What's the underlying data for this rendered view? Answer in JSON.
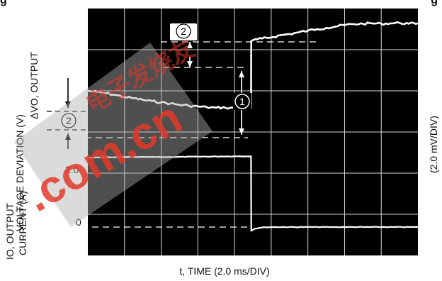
{
  "title_cut": {
    "left": "g",
    "right": "g"
  },
  "labels": {
    "y_upper_line1": "VOLTAGE DEVIATION (V)",
    "y_upper_line2": "ΔVO, OUTPUT",
    "y_lower_line1": "CURRENT (A)",
    "y_lower_line2": "IO, OUTPUT",
    "xlabel": "t, TIME (2.0 ms/DIV)",
    "right_scale": "(2.0 mV/DIV)",
    "tick_current_high": "2.0",
    "tick_current_zero": "0",
    "marker1": "1",
    "marker2_top": "2",
    "marker2_side": "2"
  },
  "watermark": {
    "text1": "电子发烧友",
    "text2": ".com.cn"
  },
  "colors": {
    "scope_bg": "#000000",
    "grid": "#d9d9d9",
    "trace": "#ffffff",
    "watermark_band": "#b0b0b0",
    "watermark_text": "#e23a2a"
  },
  "chart_data": {
    "type": "line",
    "title": "",
    "xlabel": "t, TIME (2.0 ms/DIV)",
    "x_unit": "ms",
    "x_range": [
      0,
      18
    ],
    "divisions": {
      "x": 9,
      "y": 6
    },
    "y_divisions_range": [
      0,
      6
    ],
    "series": [
      {
        "x": [
          0,
          0.5,
          1.0,
          1.5,
          2.0,
          2.5,
          3.0,
          3.5,
          4.0,
          4.5,
          5.0,
          5.5,
          6.0,
          6.5,
          7.0,
          7.5,
          8.0,
          8.5,
          8.9,
          8.91,
          9.0,
          9.5,
          10.0,
          10.5,
          11.0,
          11.5,
          12.0,
          12.5,
          13.0,
          13.5,
          14.0,
          14.5,
          15.0,
          15.5,
          16.0,
          16.5,
          17.0,
          17.5,
          18.0
        ],
        "y": [
          4.0,
          3.97,
          3.94,
          3.9,
          3.85,
          3.82,
          3.78,
          3.75,
          3.72,
          3.69,
          3.66,
          3.64,
          3.62,
          3.6,
          3.59,
          3.59,
          3.58,
          3.58,
          3.58,
          5.21,
          5.23,
          5.27,
          5.3,
          5.35,
          5.38,
          5.42,
          5.46,
          5.5,
          5.53,
          5.56,
          5.6,
          5.62,
          5.63,
          5.64,
          5.63,
          5.64,
          5.65,
          5.63,
          5.64
        ]
      },
      {
        "x": [
          0,
          2,
          4,
          6,
          8,
          8.9,
          8.91,
          9.1,
          9.5,
          10,
          12,
          14,
          16,
          18
        ],
        "y": [
          2.38,
          2.39,
          2.39,
          2.4,
          2.41,
          2.41,
          0.6,
          0.65,
          0.68,
          0.69,
          0.69,
          0.69,
          0.69,
          0.69
        ]
      }
    ],
    "annotations": [
      {
        "text": "1",
        "kind": "step"
      },
      {
        "text": "2",
        "kind": "overshoot"
      },
      {
        "text": "2",
        "kind": "deviation"
      }
    ],
    "grid": true,
    "legend": "none"
  }
}
